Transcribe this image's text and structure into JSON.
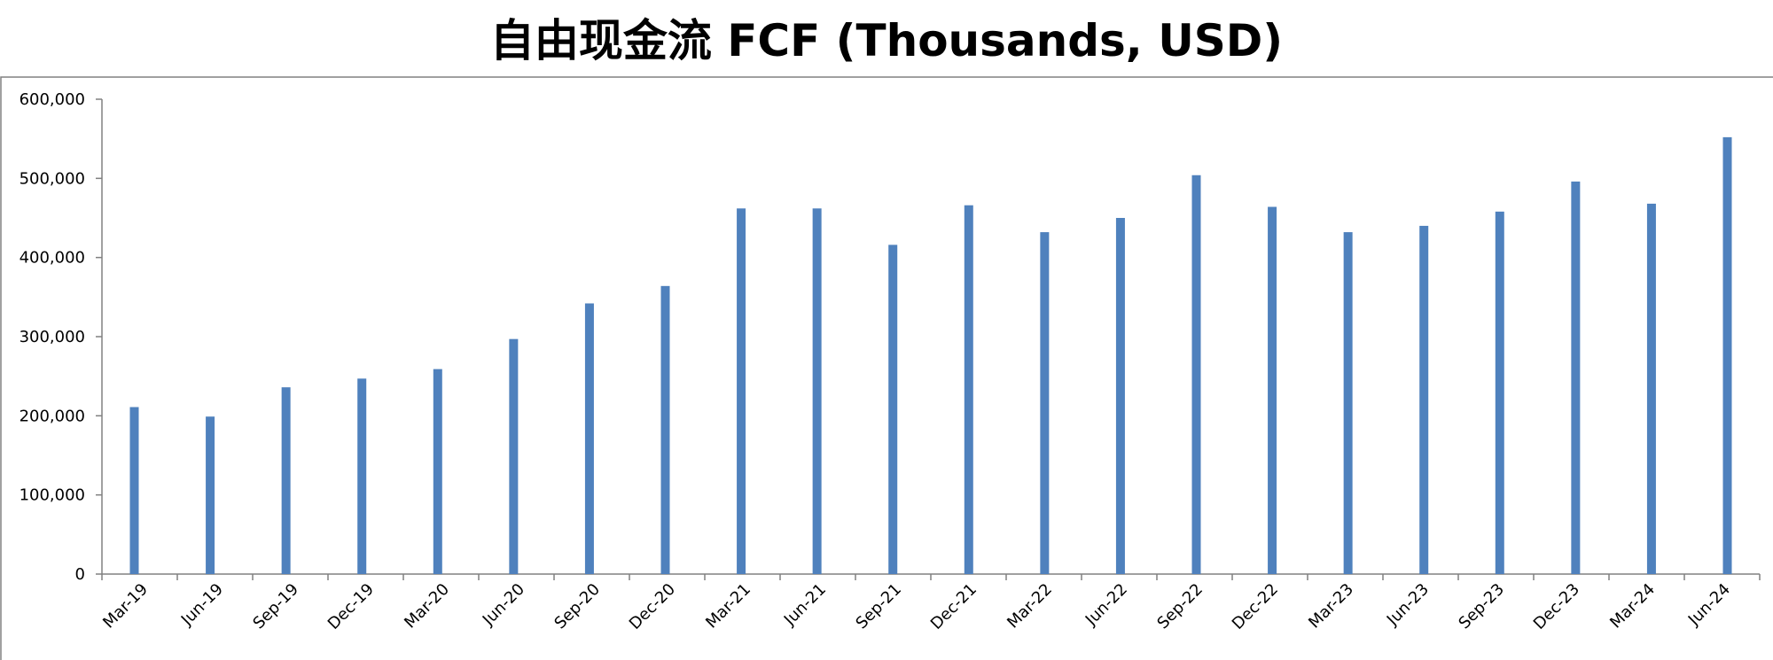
{
  "chart_data": {
    "type": "bar",
    "title": "自由现金流 FCF (Thousands, USD)",
    "xlabel": "",
    "ylabel": "",
    "ylim": [
      0,
      600000
    ],
    "yticks": [
      0,
      100000,
      200000,
      300000,
      400000,
      500000,
      600000
    ],
    "ytick_labels": [
      "0",
      "100,000",
      "200,000",
      "300,000",
      "400,000",
      "500,000",
      "600,000"
    ],
    "grid": false,
    "legend": "none",
    "bar_color": "#4F81BD",
    "categories": [
      "Mar-19",
      "Jun-19",
      "Sep-19",
      "Dec-19",
      "Mar-20",
      "Jun-20",
      "Sep-20",
      "Dec-20",
      "Mar-21",
      "Jun-21",
      "Sep-21",
      "Dec-21",
      "Mar-22",
      "Jun-22",
      "Sep-22",
      "Dec-22",
      "Mar-23",
      "Jun-23",
      "Sep-23",
      "Dec-23",
      "Mar-24",
      "Jun-24"
    ],
    "values": [
      211000,
      199000,
      236000,
      247000,
      259000,
      297000,
      342000,
      364000,
      462000,
      462000,
      416000,
      466000,
      432000,
      450000,
      504000,
      464000,
      432000,
      440000,
      458000,
      496000,
      468000,
      552000
    ]
  }
}
